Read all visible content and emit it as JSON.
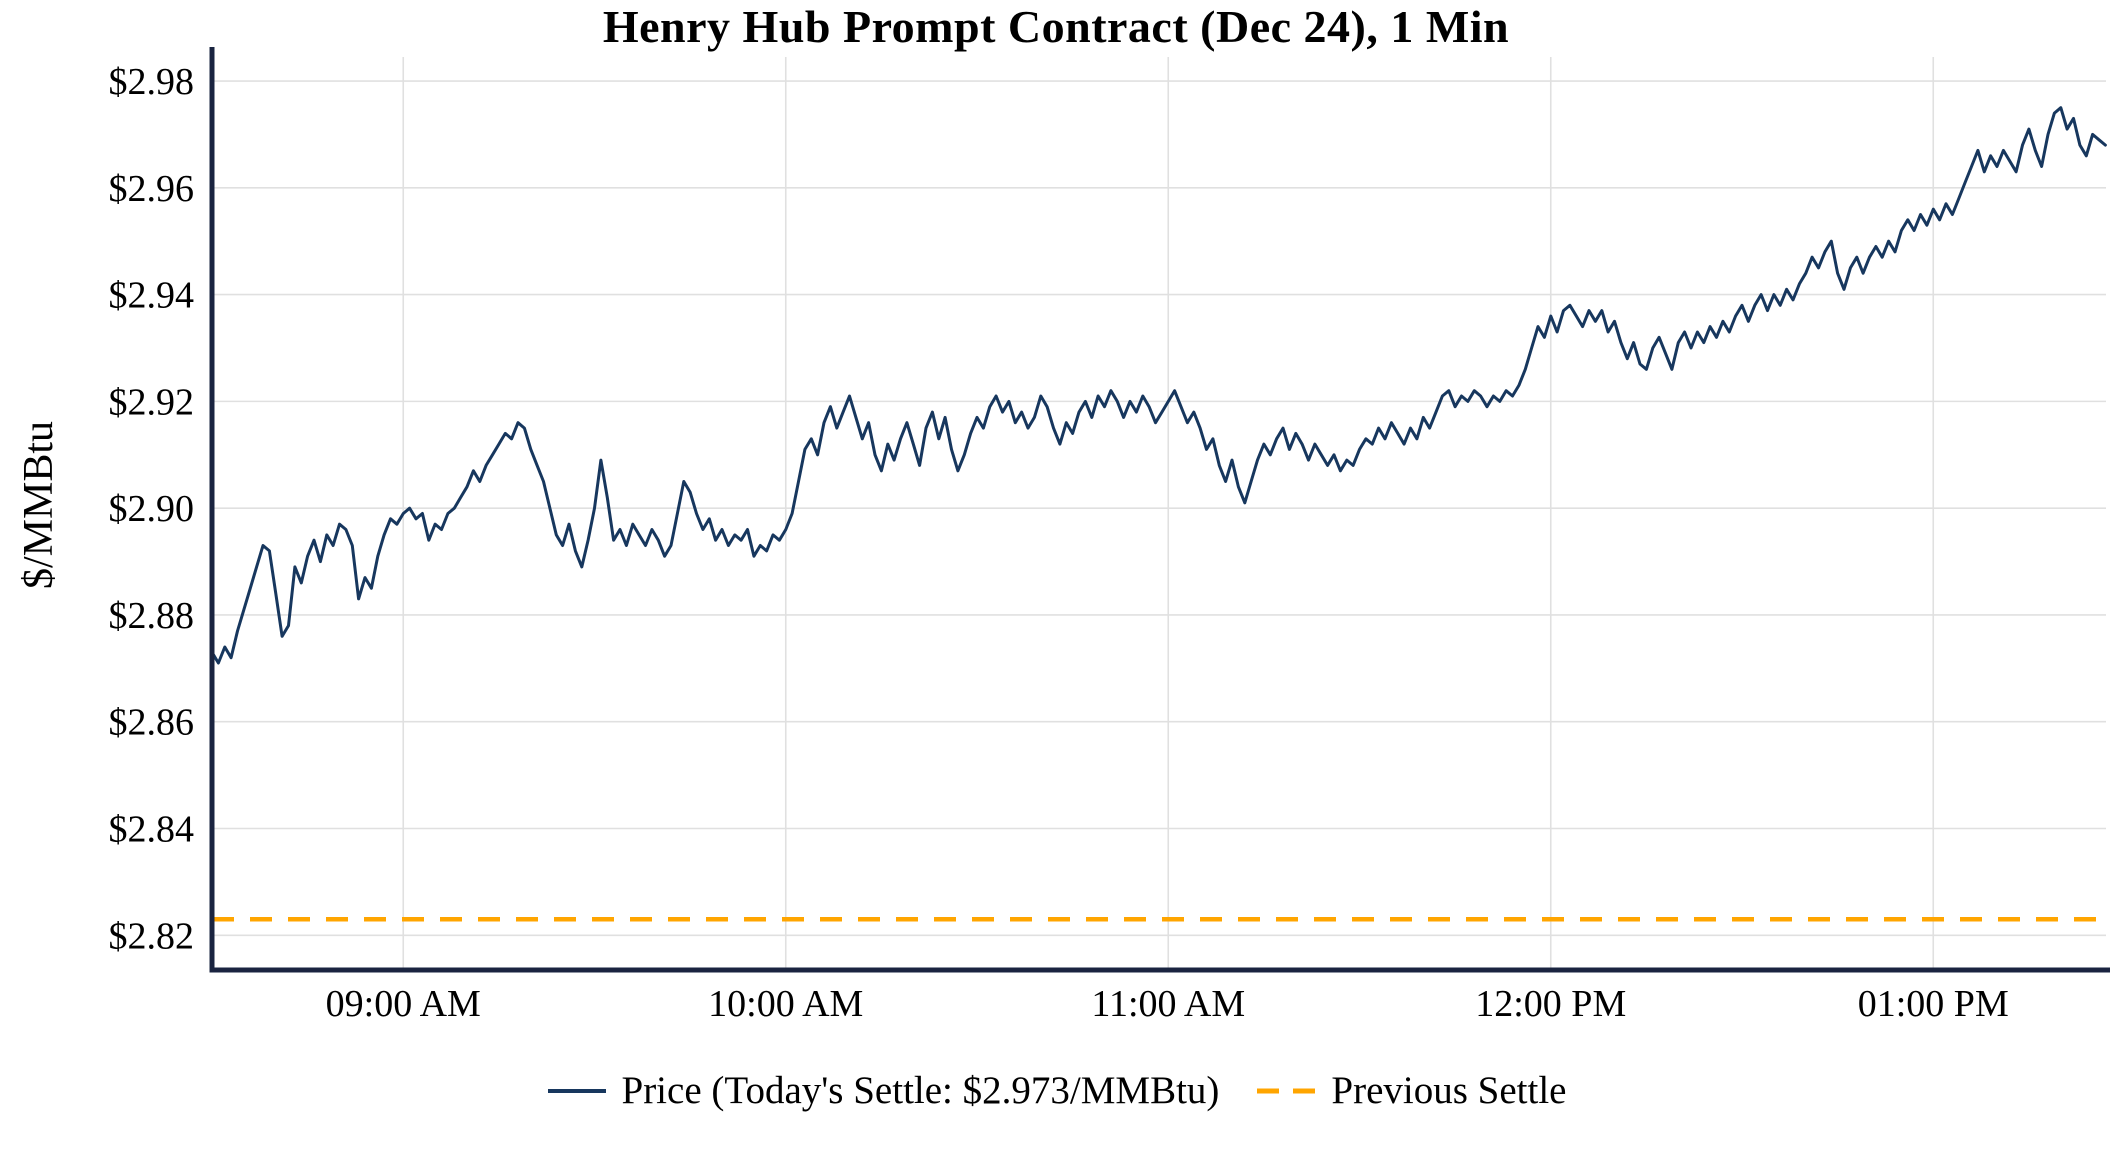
{
  "chart_data": {
    "type": "line",
    "title": "Henry Hub Prompt Contract (Dec 24), 1 Min",
    "xlabel": "",
    "ylabel": "$/MMBtu",
    "x_start": "08:30 AM",
    "x_end": "01:27 PM",
    "ylim": [
      2.8135,
      2.9845
    ],
    "grid": true,
    "legend_position": "bottom",
    "previous_settle": 2.823,
    "todays_settle": 2.973,
    "y_ticks": [
      {
        "value": 2.82,
        "label": "$2.82"
      },
      {
        "value": 2.84,
        "label": "$2.84"
      },
      {
        "value": 2.86,
        "label": "$2.86"
      },
      {
        "value": 2.88,
        "label": "$2.88"
      },
      {
        "value": 2.9,
        "label": "$2.90"
      },
      {
        "value": 2.92,
        "label": "$2.92"
      },
      {
        "value": 2.94,
        "label": "$2.94"
      },
      {
        "value": 2.96,
        "label": "$2.96"
      },
      {
        "value": 2.98,
        "label": "$2.98"
      }
    ],
    "x_ticks": [
      {
        "minute": 30,
        "label": "09:00 AM"
      },
      {
        "minute": 90,
        "label": "10:00 AM"
      },
      {
        "minute": 150,
        "label": "11:00 AM"
      },
      {
        "minute": 210,
        "label": "12:00 PM"
      },
      {
        "minute": 270,
        "label": "01:00 PM"
      }
    ],
    "series": {
      "name": "Price",
      "interval_minutes": 1,
      "prices": [
        2.873,
        2.871,
        2.874,
        2.872,
        2.877,
        2.881,
        2.885,
        2.889,
        2.893,
        2.892,
        2.884,
        2.876,
        2.878,
        2.889,
        2.886,
        2.891,
        2.894,
        2.89,
        2.895,
        2.893,
        2.897,
        2.896,
        2.893,
        2.883,
        2.887,
        2.885,
        2.891,
        2.895,
        2.898,
        2.897,
        2.899,
        2.9,
        2.898,
        2.899,
        2.894,
        2.897,
        2.896,
        2.899,
        2.9,
        2.902,
        2.904,
        2.907,
        2.905,
        2.908,
        2.91,
        2.912,
        2.914,
        2.913,
        2.916,
        2.915,
        2.911,
        2.908,
        2.905,
        2.9,
        2.895,
        2.893,
        2.897,
        2.892,
        2.889,
        2.894,
        2.9,
        2.909,
        2.902,
        2.894,
        2.896,
        2.893,
        2.897,
        2.895,
        2.893,
        2.896,
        2.894,
        2.891,
        2.893,
        2.899,
        2.905,
        2.903,
        2.899,
        2.896,
        2.898,
        2.894,
        2.896,
        2.893,
        2.895,
        2.894,
        2.896,
        2.891,
        2.893,
        2.892,
        2.895,
        2.894,
        2.896,
        2.899,
        2.905,
        2.911,
        2.913,
        2.91,
        2.916,
        2.919,
        2.915,
        2.918,
        2.921,
        2.917,
        2.913,
        2.916,
        2.91,
        2.907,
        2.912,
        2.909,
        2.913,
        2.916,
        2.912,
        2.908,
        2.915,
        2.918,
        2.913,
        2.917,
        2.911,
        2.907,
        2.91,
        2.914,
        2.917,
        2.915,
        2.919,
        2.921,
        2.918,
        2.92,
        2.916,
        2.918,
        2.915,
        2.917,
        2.921,
        2.919,
        2.915,
        2.912,
        2.916,
        2.914,
        2.918,
        2.92,
        2.917,
        2.921,
        2.919,
        2.922,
        2.92,
        2.917,
        2.92,
        2.918,
        2.921,
        2.919,
        2.916,
        2.918,
        2.92,
        2.922,
        2.919,
        2.916,
        2.918,
        2.915,
        2.911,
        2.913,
        2.908,
        2.905,
        2.909,
        2.904,
        2.901,
        2.905,
        2.909,
        2.912,
        2.91,
        2.913,
        2.915,
        2.911,
        2.914,
        2.912,
        2.909,
        2.912,
        2.91,
        2.908,
        2.91,
        2.907,
        2.909,
        2.908,
        2.911,
        2.913,
        2.912,
        2.915,
        2.913,
        2.916,
        2.914,
        2.912,
        2.915,
        2.913,
        2.917,
        2.915,
        2.918,
        2.921,
        2.922,
        2.919,
        2.921,
        2.92,
        2.922,
        2.921,
        2.919,
        2.921,
        2.92,
        2.922,
        2.921,
        2.923,
        2.926,
        2.93,
        2.934,
        2.932,
        2.936,
        2.933,
        2.937,
        2.938,
        2.936,
        2.934,
        2.937,
        2.935,
        2.937,
        2.933,
        2.935,
        2.931,
        2.928,
        2.931,
        2.927,
        2.926,
        2.93,
        2.932,
        2.929,
        2.926,
        2.931,
        2.933,
        2.93,
        2.933,
        2.931,
        2.934,
        2.932,
        2.935,
        2.933,
        2.936,
        2.938,
        2.935,
        2.938,
        2.94,
        2.937,
        2.94,
        2.938,
        2.941,
        2.939,
        2.942,
        2.944,
        2.947,
        2.945,
        2.948,
        2.95,
        2.944,
        2.941,
        2.945,
        2.947,
        2.944,
        2.947,
        2.949,
        2.947,
        2.95,
        2.948,
        2.952,
        2.954,
        2.952,
        2.955,
        2.953,
        2.956,
        2.954,
        2.957,
        2.955,
        2.958,
        2.961,
        2.964,
        2.967,
        2.963,
        2.966,
        2.964,
        2.967,
        2.965,
        2.963,
        2.968,
        2.971,
        2.967,
        2.964,
        2.97,
        2.974,
        2.975,
        2.971,
        2.973,
        2.968,
        2.966,
        2.97,
        2.969,
        2.968
      ]
    },
    "colors": {
      "price": "#17375e",
      "previous_settle": "#ffa500",
      "grid": "#e0e0e0",
      "axis": "#1a2440",
      "text": "#000000"
    }
  },
  "legend": {
    "price_label": "Price (Today's Settle: $2.973/MMBtu)",
    "previous_settle_label": "Previous Settle"
  }
}
